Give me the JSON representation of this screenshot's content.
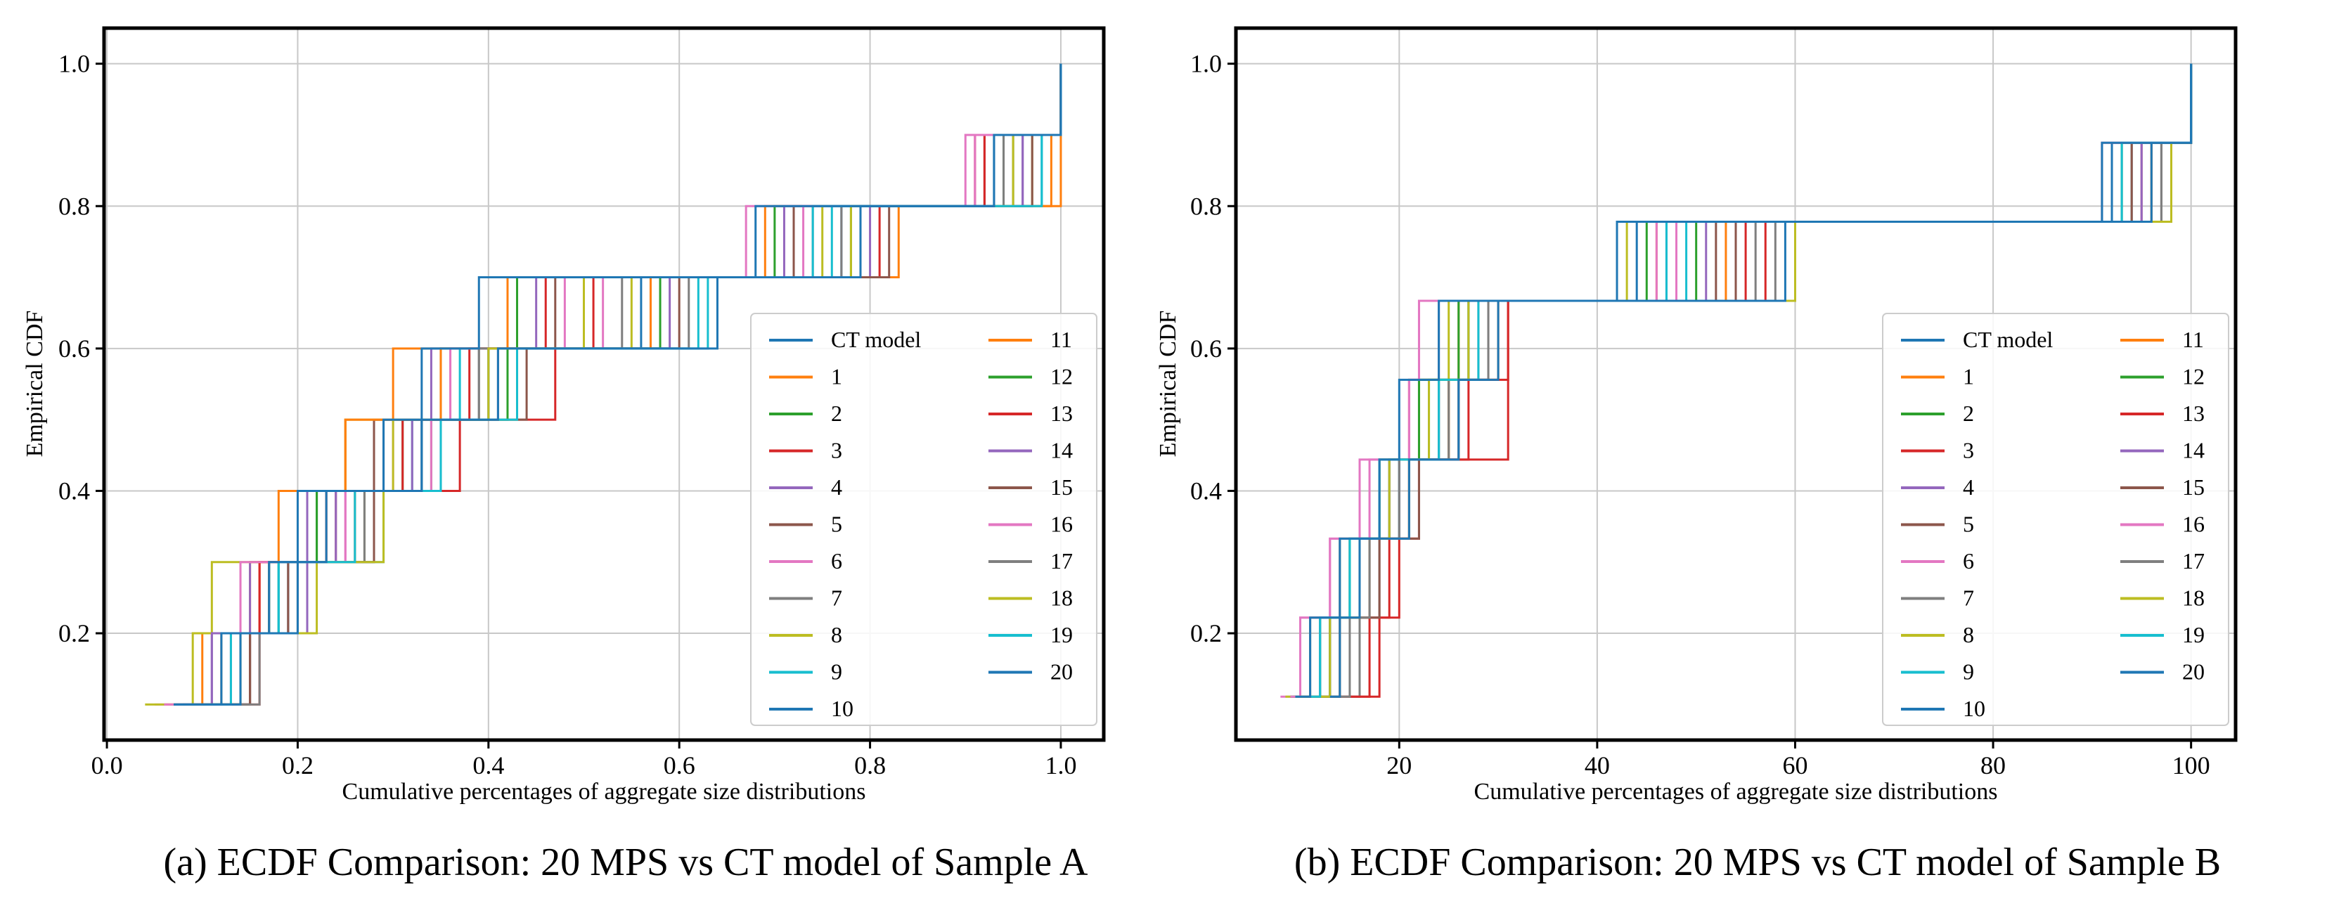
{
  "colors": {
    "CT model": "#1f77b4",
    "1": "#ff7f0e",
    "2": "#2ca02c",
    "3": "#d62728",
    "4": "#9467bd",
    "5": "#8c564b",
    "6": "#e377c2",
    "7": "#7f7f7f",
    "8": "#bcbd22",
    "9": "#17becf",
    "10": "#1f77b4",
    "11": "#ff7f0e",
    "12": "#2ca02c",
    "13": "#d62728",
    "14": "#9467bd",
    "15": "#8c564b",
    "16": "#e377c2",
    "17": "#7f7f7f",
    "18": "#bcbd22",
    "19": "#17becf",
    "20": "#1f77b4"
  },
  "chart_data": [
    {
      "type": "line",
      "caption": "(a) ECDF Comparison: 20 MPS vs CT model of Sample A",
      "xlabel": "Cumulative percentages of aggregate size distributions",
      "ylabel": "Empirical CDF",
      "xlim": [
        -0.003,
        1.045
      ],
      "ylim": [
        0.05,
        1.05
      ],
      "xticks": [
        0.0,
        0.2,
        0.4,
        0.6,
        0.8,
        1.0
      ],
      "xtick_labels": [
        "0.0",
        "0.2",
        "0.4",
        "0.6",
        "0.8",
        "1.0"
      ],
      "yticks": [
        0.2,
        0.4,
        0.6,
        0.8,
        1.0
      ],
      "ytick_labels": [
        "0.2",
        "0.4",
        "0.6",
        "0.8",
        "1.0"
      ],
      "legend_position": "lower-right",
      "legend_columns": [
        [
          "CT model",
          "1",
          "2",
          "3",
          "4",
          "5",
          "6",
          "7",
          "8",
          "9",
          "10"
        ],
        [
          "11",
          "12",
          "13",
          "14",
          "15",
          "16",
          "17",
          "18",
          "19",
          "20"
        ]
      ],
      "y_levels": [
        0.1,
        0.2,
        0.3,
        0.4,
        0.5,
        0.6,
        0.7,
        0.8,
        0.9,
        1.0
      ],
      "series": [
        {
          "name": "CT model",
          "x": [
            0.07,
            0.12,
            0.17,
            0.2,
            0.29,
            0.33,
            0.39,
            0.68,
            0.93,
            1.0
          ]
        },
        {
          "name": "1",
          "x": [
            0.06,
            0.1,
            0.15,
            0.18,
            0.25,
            0.3,
            0.42,
            0.69,
            0.99,
            1.0
          ]
        },
        {
          "name": "2",
          "x": [
            0.08,
            0.14,
            0.18,
            0.22,
            0.31,
            0.35,
            0.43,
            0.7,
            0.95,
            1.0
          ]
        },
        {
          "name": "3",
          "x": [
            0.09,
            0.16,
            0.17,
            0.24,
            0.37,
            0.47,
            0.51,
            0.81,
            0.91,
            1.0
          ]
        },
        {
          "name": "4",
          "x": [
            0.1,
            0.11,
            0.15,
            0.21,
            0.28,
            0.34,
            0.45,
            0.71,
            0.96,
            1.0
          ]
        },
        {
          "name": "5",
          "x": [
            0.11,
            0.15,
            0.19,
            0.23,
            0.28,
            0.4,
            0.47,
            0.72,
            0.92,
            1.0
          ]
        },
        {
          "name": "6",
          "x": [
            0.05,
            0.12,
            0.16,
            0.25,
            0.3,
            0.36,
            0.52,
            0.73,
            0.91,
            1.0
          ]
        },
        {
          "name": "7",
          "x": [
            0.07,
            0.13,
            0.2,
            0.26,
            0.29,
            0.39,
            0.54,
            0.74,
            0.95,
            1.0
          ]
        },
        {
          "name": "8",
          "x": [
            0.04,
            0.09,
            0.11,
            0.27,
            0.25,
            0.43,
            0.55,
            0.75,
            0.97,
            1.0
          ]
        },
        {
          "name": "9",
          "x": [
            0.12,
            0.15,
            0.18,
            0.29,
            0.32,
            0.37,
            0.62,
            0.76,
            0.98,
            1.0
          ]
        },
        {
          "name": "10",
          "x": [
            0.07,
            0.13,
            0.19,
            0.28,
            0.33,
            0.4,
            0.56,
            0.77,
            0.93,
            1.0
          ]
        },
        {
          "name": "11",
          "x": [
            0.09,
            0.14,
            0.16,
            0.26,
            0.25,
            0.35,
            0.57,
            0.83,
            1.0,
            1.0
          ]
        },
        {
          "name": "12",
          "x": [
            0.1,
            0.14,
            0.17,
            0.22,
            0.34,
            0.42,
            0.58,
            0.78,
            0.94,
            1.0
          ]
        },
        {
          "name": "13",
          "x": [
            0.12,
            0.15,
            0.16,
            0.23,
            0.31,
            0.38,
            0.46,
            0.79,
            0.92,
            1.0
          ]
        },
        {
          "name": "14",
          "x": [
            0.08,
            0.11,
            0.21,
            0.24,
            0.32,
            0.41,
            0.59,
            0.8,
            0.96,
            1.0
          ]
        },
        {
          "name": "15",
          "x": [
            0.1,
            0.15,
            0.19,
            0.28,
            0.35,
            0.44,
            0.6,
            0.82,
            0.97,
            1.0
          ]
        },
        {
          "name": "16",
          "x": [
            0.06,
            0.13,
            0.14,
            0.25,
            0.34,
            0.36,
            0.48,
            0.67,
            0.9,
            1.0
          ]
        },
        {
          "name": "17",
          "x": [
            0.08,
            0.16,
            0.2,
            0.27,
            0.33,
            0.39,
            0.61,
            0.77,
            0.94,
            1.0
          ]
        },
        {
          "name": "18",
          "x": [
            0.09,
            0.12,
            0.22,
            0.29,
            0.3,
            0.4,
            0.5,
            0.78,
            0.95,
            1.0
          ]
        },
        {
          "name": "19",
          "x": [
            0.11,
            0.13,
            0.18,
            0.26,
            0.35,
            0.43,
            0.63,
            0.74,
            0.98,
            1.0
          ]
        },
        {
          "name": "20",
          "x": [
            0.07,
            0.14,
            0.2,
            0.23,
            0.33,
            0.41,
            0.64,
            0.79,
            0.93,
            1.0
          ]
        }
      ]
    },
    {
      "type": "line",
      "caption": "(b) ECDF Comparison: 20 MPS vs CT model of Sample B",
      "xlabel": "Cumulative percentages of aggregate size distributions",
      "ylabel": "Empirical CDF",
      "xlim": [
        3.5,
        104.5
      ],
      "ylim": [
        0.05,
        1.05
      ],
      "xticks": [
        20,
        40,
        60,
        80,
        100
      ],
      "xtick_labels": [
        "20",
        "40",
        "60",
        "80",
        "100"
      ],
      "yticks": [
        0.2,
        0.4,
        0.6,
        0.8,
        1.0
      ],
      "ytick_labels": [
        "0.2",
        "0.4",
        "0.6",
        "0.8",
        "1.0"
      ],
      "legend_position": "lower-right",
      "legend_columns": [
        [
          "CT model",
          "1",
          "2",
          "3",
          "4",
          "5",
          "6",
          "7",
          "8",
          "9",
          "10"
        ],
        [
          "11",
          "12",
          "13",
          "14",
          "15",
          "16",
          "17",
          "18",
          "19",
          "20"
        ]
      ],
      "y_levels": [
        0.111,
        0.222,
        0.333,
        0.444,
        0.556,
        0.667,
        0.778,
        0.889,
        1.0
      ],
      "series": [
        {
          "name": "CT model",
          "x": [
            9.5,
            11,
            14,
            18,
            20,
            24,
            42,
            91,
            100
          ]
        },
        {
          "name": "1",
          "x": [
            11,
            12,
            15,
            19,
            21,
            26,
            46,
            95,
            100
          ]
        },
        {
          "name": "2",
          "x": [
            10,
            13,
            16,
            20,
            24,
            27,
            50,
            93,
            100
          ]
        },
        {
          "name": "3",
          "x": [
            15,
            18,
            20,
            22,
            31,
            31,
            55,
            94,
            100
          ]
        },
        {
          "name": "4",
          "x": [
            9,
            11,
            14,
            19,
            22,
            24,
            47,
            92,
            100
          ]
        },
        {
          "name": "5",
          "x": [
            12,
            13,
            17,
            21,
            25,
            29,
            52,
            96,
            100
          ]
        },
        {
          "name": "6",
          "x": [
            8,
            10,
            13,
            17,
            21,
            22,
            48,
            95,
            100
          ]
        },
        {
          "name": "7",
          "x": [
            13,
            16,
            18,
            21,
            26,
            30,
            56,
            97,
            100
          ]
        },
        {
          "name": "8",
          "x": [
            8.5,
            11,
            14,
            18,
            22,
            25,
            43,
            98,
            100
          ]
        },
        {
          "name": "9",
          "x": [
            10,
            12,
            15,
            20,
            23,
            28,
            49,
            94,
            100
          ]
        },
        {
          "name": "10",
          "x": [
            11,
            13,
            16,
            19,
            24,
            27,
            44,
            92,
            100
          ]
        },
        {
          "name": "11",
          "x": [
            12,
            14,
            17,
            21,
            25,
            30,
            53,
            96,
            100
          ]
        },
        {
          "name": "12",
          "x": [
            9,
            12,
            15,
            18,
            22,
            26,
            45,
            93,
            100
          ]
        },
        {
          "name": "13",
          "x": [
            14,
            17,
            19,
            22,
            27,
            31,
            57,
            91,
            100
          ]
        },
        {
          "name": "14",
          "x": [
            10,
            12,
            16,
            20,
            24,
            28,
            51,
            95,
            100
          ]
        },
        {
          "name": "15",
          "x": [
            11,
            14,
            18,
            22,
            26,
            29,
            54,
            94,
            100
          ]
        },
        {
          "name": "16",
          "x": [
            9,
            10,
            13,
            16,
            21,
            22,
            46,
            91,
            100
          ]
        },
        {
          "name": "17",
          "x": [
            12,
            15,
            17,
            20,
            25,
            29,
            58,
            97,
            100
          ]
        },
        {
          "name": "18",
          "x": [
            10,
            13,
            16,
            19,
            23,
            27,
            60,
            98,
            100
          ]
        },
        {
          "name": "19",
          "x": [
            11,
            12,
            15,
            18,
            24,
            28,
            47,
            93,
            100
          ]
        },
        {
          "name": "20",
          "x": [
            13,
            14,
            16,
            21,
            26,
            30,
            59,
            96,
            100
          ]
        }
      ]
    }
  ]
}
